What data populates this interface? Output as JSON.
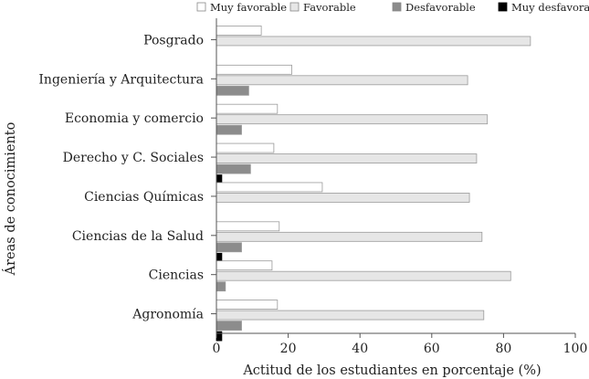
{
  "chart_data": {
    "type": "bar",
    "orientation": "horizontal",
    "xlabel": "Actitud de los estudiantes en porcentaje (%)",
    "ylabel": "Áreas de conocimiento",
    "xlim": [
      0,
      100
    ],
    "xticks": [
      0,
      20,
      40,
      60,
      80,
      100
    ],
    "grid": false,
    "legend_position": "top-right",
    "categories": [
      "Posgrado",
      "Ingeniería y Arquitectura",
      "Economia y comercio",
      "Derecho y C. Sociales",
      "Ciencias Químicas",
      "Ciencias de la Salud",
      "Ciencias",
      "Agronomía"
    ],
    "series": [
      {
        "name": "Muy favorable",
        "color": "#ffffff",
        "values": [
          12.5,
          21,
          17,
          16,
          29.5,
          17.5,
          15.5,
          17
        ]
      },
      {
        "name": "Favorable",
        "color": "#e6e6e6",
        "values": [
          87.5,
          70,
          75.5,
          72.5,
          70.5,
          74,
          82,
          74.5
        ]
      },
      {
        "name": "Desfavorable",
        "color": "#8c8c8c",
        "values": [
          0,
          9,
          7,
          9.5,
          0,
          7,
          2.5,
          7
        ]
      },
      {
        "name": "Muy desfavorable",
        "color": "#000000",
        "values": [
          0,
          0,
          0,
          1.5,
          0,
          1.5,
          0,
          1.5
        ]
      }
    ]
  }
}
